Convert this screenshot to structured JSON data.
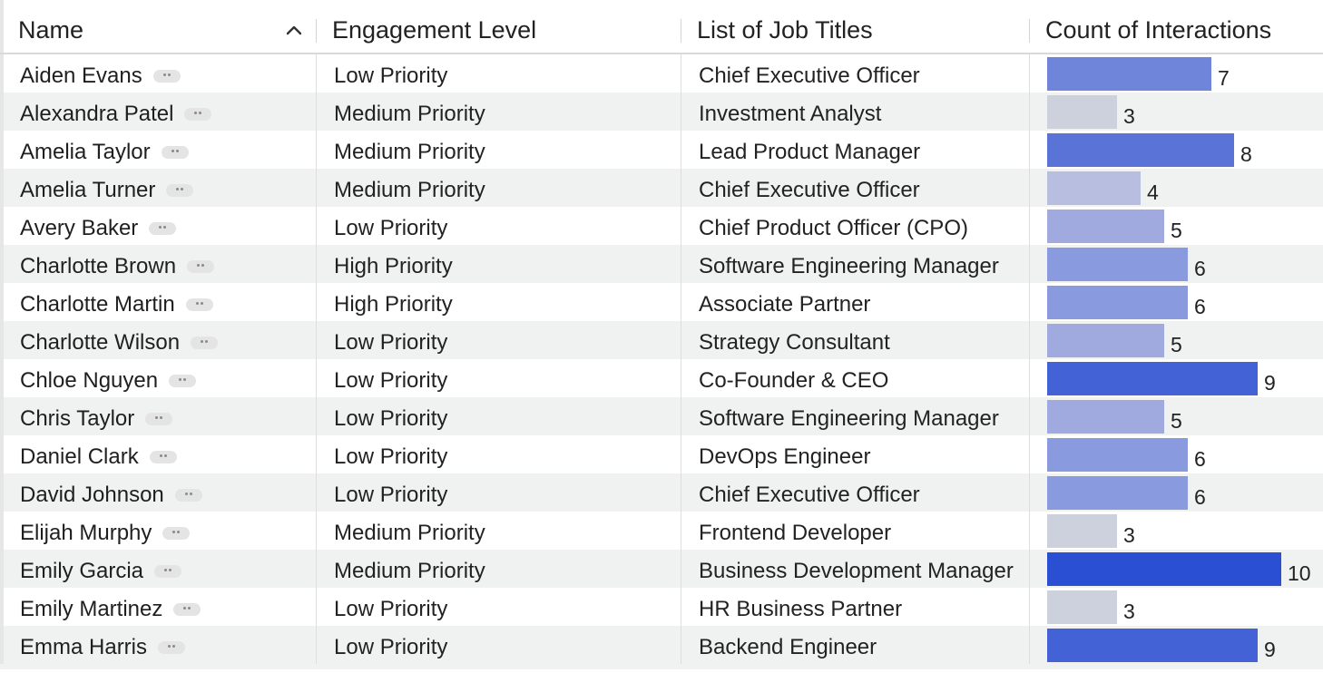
{
  "columns": {
    "name": "Name",
    "engagement": "Engagement Level",
    "job_titles": "List of Job Titles",
    "interactions": "Count of Interactions"
  },
  "icons": {
    "sort": "chevron-up-icon",
    "more": "more-dots-icon"
  },
  "bar_colors": {
    "3": "#cdd0dd",
    "4": "#b7bedf",
    "5": "#a0aadf",
    "6": "#8a9ade",
    "7": "#6f85d9",
    "8": "#5a73d7",
    "9": "#4262d6",
    "10": "#2a4fd2"
  },
  "bar_scale_max": 10,
  "rows": [
    {
      "name": "Aiden Evans",
      "engagement": "Low Priority",
      "job_title": "Chief Executive Officer",
      "interactions": 7
    },
    {
      "name": "Alexandra Patel",
      "engagement": "Medium Priority",
      "job_title": "Investment Analyst",
      "interactions": 3
    },
    {
      "name": "Amelia Taylor",
      "engagement": "Medium Priority",
      "job_title": "Lead Product Manager",
      "interactions": 8
    },
    {
      "name": "Amelia Turner",
      "engagement": "Medium Priority",
      "job_title": "Chief Executive Officer",
      "interactions": 4
    },
    {
      "name": "Avery Baker",
      "engagement": "Low Priority",
      "job_title": "Chief Product Officer (CPO)",
      "interactions": 5
    },
    {
      "name": "Charlotte Brown",
      "engagement": "High Priority",
      "job_title": "Software Engineering Manager",
      "interactions": 6
    },
    {
      "name": "Charlotte Martin",
      "engagement": "High Priority",
      "job_title": "Associate Partner",
      "interactions": 6
    },
    {
      "name": "Charlotte Wilson",
      "engagement": "Low Priority",
      "job_title": "Strategy Consultant",
      "interactions": 5
    },
    {
      "name": "Chloe Nguyen",
      "engagement": "Low Priority",
      "job_title": "Co-Founder & CEO",
      "interactions": 9
    },
    {
      "name": "Chris Taylor",
      "engagement": "Low Priority",
      "job_title": "Software Engineering Manager",
      "interactions": 5
    },
    {
      "name": "Daniel Clark",
      "engagement": "Low Priority",
      "job_title": "DevOps Engineer",
      "interactions": 6
    },
    {
      "name": "David Johnson",
      "engagement": "Low Priority",
      "job_title": "Chief Executive Officer",
      "interactions": 6
    },
    {
      "name": "Elijah Murphy",
      "engagement": "Medium Priority",
      "job_title": "Frontend Developer",
      "interactions": 3
    },
    {
      "name": "Emily Garcia",
      "engagement": "Medium Priority",
      "job_title": "Business Development Manager",
      "interactions": 10
    },
    {
      "name": "Emily Martinez",
      "engagement": "Low Priority",
      "job_title": "HR Business Partner",
      "interactions": 3
    },
    {
      "name": "Emma Harris",
      "engagement": "Low Priority",
      "job_title": "Backend Engineer",
      "interactions": 9
    }
  ]
}
